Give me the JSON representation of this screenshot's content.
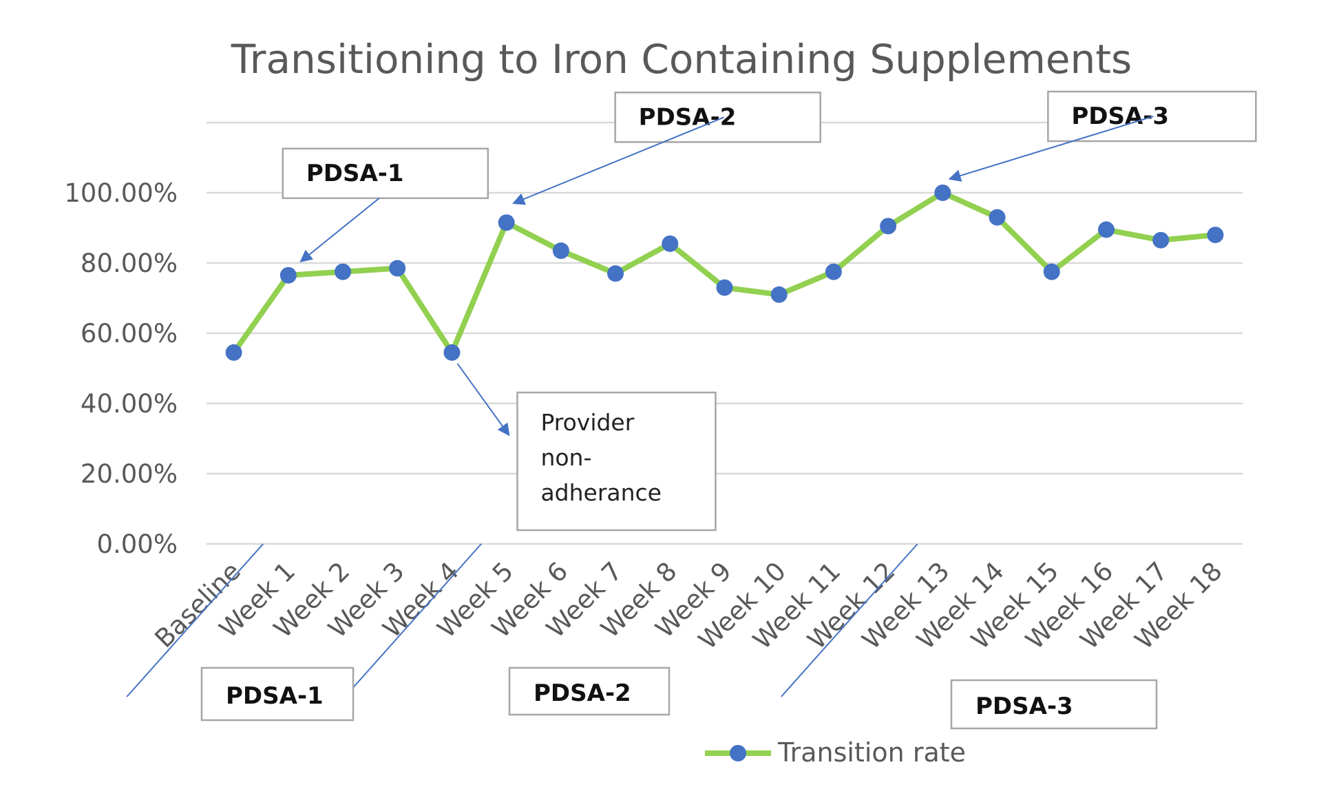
{
  "chart_data": {
    "type": "line",
    "title": "Transitioning to Iron Containing Supplements",
    "categories": [
      "Baseline",
      "Week 1",
      "Week 2",
      "Week 3",
      "Week 4",
      "Week 5",
      "Week 6",
      "Week 7",
      "Week 8",
      "Week 9",
      "Week 10",
      "Week 11",
      "Week 12",
      "Week 13",
      "Week 14",
      "Week 15",
      "Week 16",
      "Week 17",
      "Week 18"
    ],
    "series": [
      {
        "name": "Transition rate",
        "values": [
          0.545,
          0.765,
          0.775,
          0.785,
          0.545,
          0.915,
          0.835,
          0.77,
          0.855,
          0.73,
          0.71,
          0.775,
          0.905,
          1.0,
          0.93,
          0.775,
          0.895,
          0.865,
          0.88
        ]
      }
    ],
    "ylim": [
      0,
      1.2
    ],
    "yticks": [
      {
        "value": 0,
        "label": "0.00%"
      },
      {
        "value": 0.2,
        "label": "20.00%"
      },
      {
        "value": 0.4,
        "label": "40.00%"
      },
      {
        "value": 0.6,
        "label": "60.00%"
      },
      {
        "value": 0.8,
        "label": "80.00%"
      },
      {
        "value": 1.0,
        "label": "100.00%"
      }
    ],
    "grid": true,
    "legend_position": "bottom",
    "colors": {
      "line": "#92d050",
      "marker": "#4472c4",
      "annotation": "#4472c4"
    },
    "annotations": {
      "point_callouts": [
        {
          "text": "PDSA-1",
          "target_index": 1
        },
        {
          "text": "PDSA-2",
          "target_index": 5
        },
        {
          "text": "PDSA-3",
          "target_index": 13
        }
      ],
      "note": {
        "lines": [
          "Provider",
          "non-",
          "adherance"
        ],
        "target_index": 4
      },
      "phase_labels": [
        {
          "text": "PDSA-1",
          "start_index": 1
        },
        {
          "text": "PDSA-2",
          "start_index": 5
        },
        {
          "text": "PDSA-3",
          "start_index": 13
        }
      ]
    }
  }
}
